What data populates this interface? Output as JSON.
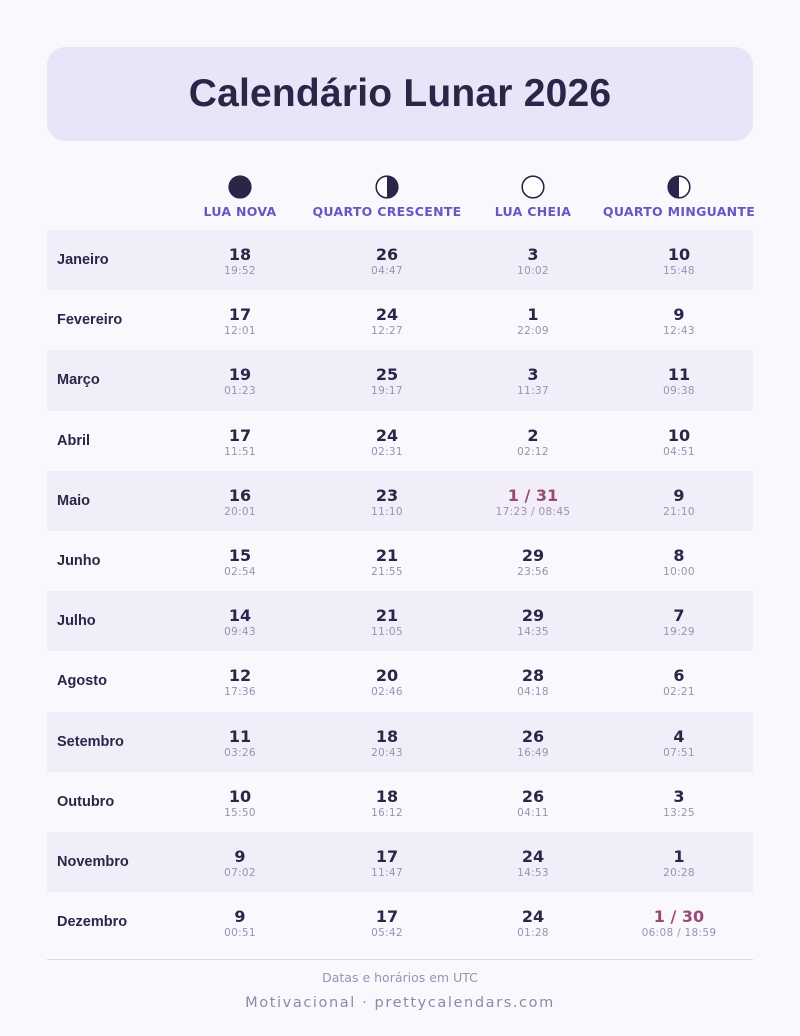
{
  "title": "Calendário Lunar 2026",
  "phases": [
    {
      "label": "LUA NOVA",
      "icon": "new-moon-icon"
    },
    {
      "label": "QUARTO CRESCENTE",
      "icon": "first-quarter-icon"
    },
    {
      "label": "LUA CHEIA",
      "icon": "full-moon-icon"
    },
    {
      "label": "QUARTO MINGUANTE",
      "icon": "last-quarter-icon"
    }
  ],
  "colors": {
    "accent": "#6b55c0",
    "dark": "#2b2648",
    "highlight": "#9a4a72",
    "muted": "#9993b1",
    "title_bg": "#e9e5f8",
    "row_alt": "#f1eef9"
  },
  "months": [
    {
      "name": "Janeiro",
      "cells": [
        {
          "d": "18",
          "t": "19:52"
        },
        {
          "d": "26",
          "t": "04:47"
        },
        {
          "d": "3",
          "t": "10:02"
        },
        {
          "d": "10",
          "t": "15:48"
        }
      ]
    },
    {
      "name": "Fevereiro",
      "cells": [
        {
          "d": "17",
          "t": "12:01"
        },
        {
          "d": "24",
          "t": "12:27"
        },
        {
          "d": "1",
          "t": "22:09"
        },
        {
          "d": "9",
          "t": "12:43"
        }
      ]
    },
    {
      "name": "Março",
      "cells": [
        {
          "d": "19",
          "t": "01:23"
        },
        {
          "d": "25",
          "t": "19:17"
        },
        {
          "d": "3",
          "t": "11:37"
        },
        {
          "d": "11",
          "t": "09:38"
        }
      ]
    },
    {
      "name": "Abril",
      "cells": [
        {
          "d": "17",
          "t": "11:51"
        },
        {
          "d": "24",
          "t": "02:31"
        },
        {
          "d": "2",
          "t": "02:12"
        },
        {
          "d": "10",
          "t": "04:51"
        }
      ]
    },
    {
      "name": "Maio",
      "cells": [
        {
          "d": "16",
          "t": "20:01"
        },
        {
          "d": "23",
          "t": "11:10"
        },
        {
          "d": "1 / 31",
          "t": "17:23 / 08:45",
          "hl": true
        },
        {
          "d": "9",
          "t": "21:10"
        }
      ]
    },
    {
      "name": "Junho",
      "cells": [
        {
          "d": "15",
          "t": "02:54"
        },
        {
          "d": "21",
          "t": "21:55"
        },
        {
          "d": "29",
          "t": "23:56"
        },
        {
          "d": "8",
          "t": "10:00"
        }
      ]
    },
    {
      "name": "Julho",
      "cells": [
        {
          "d": "14",
          "t": "09:43"
        },
        {
          "d": "21",
          "t": "11:05"
        },
        {
          "d": "29",
          "t": "14:35"
        },
        {
          "d": "7",
          "t": "19:29"
        }
      ]
    },
    {
      "name": "Agosto",
      "cells": [
        {
          "d": "12",
          "t": "17:36"
        },
        {
          "d": "20",
          "t": "02:46"
        },
        {
          "d": "28",
          "t": "04:18"
        },
        {
          "d": "6",
          "t": "02:21"
        }
      ]
    },
    {
      "name": "Setembro",
      "cells": [
        {
          "d": "11",
          "t": "03:26"
        },
        {
          "d": "18",
          "t": "20:43"
        },
        {
          "d": "26",
          "t": "16:49"
        },
        {
          "d": "4",
          "t": "07:51"
        }
      ]
    },
    {
      "name": "Outubro",
      "cells": [
        {
          "d": "10",
          "t": "15:50"
        },
        {
          "d": "18",
          "t": "16:12"
        },
        {
          "d": "26",
          "t": "04:11"
        },
        {
          "d": "3",
          "t": "13:25"
        }
      ]
    },
    {
      "name": "Novembro",
      "cells": [
        {
          "d": "9",
          "t": "07:02"
        },
        {
          "d": "17",
          "t": "11:47"
        },
        {
          "d": "24",
          "t": "14:53"
        },
        {
          "d": "1",
          "t": "20:28"
        }
      ]
    },
    {
      "name": "Dezembro",
      "cells": [
        {
          "d": "9",
          "t": "00:51"
        },
        {
          "d": "17",
          "t": "05:42"
        },
        {
          "d": "24",
          "t": "01:28"
        },
        {
          "d": "1 / 30",
          "t": "06:08 / 18:59",
          "hl": true
        }
      ]
    }
  ],
  "footer": {
    "note": "Datas e horários em UTC",
    "brand": "Motivacional · prettycalendars.com"
  }
}
